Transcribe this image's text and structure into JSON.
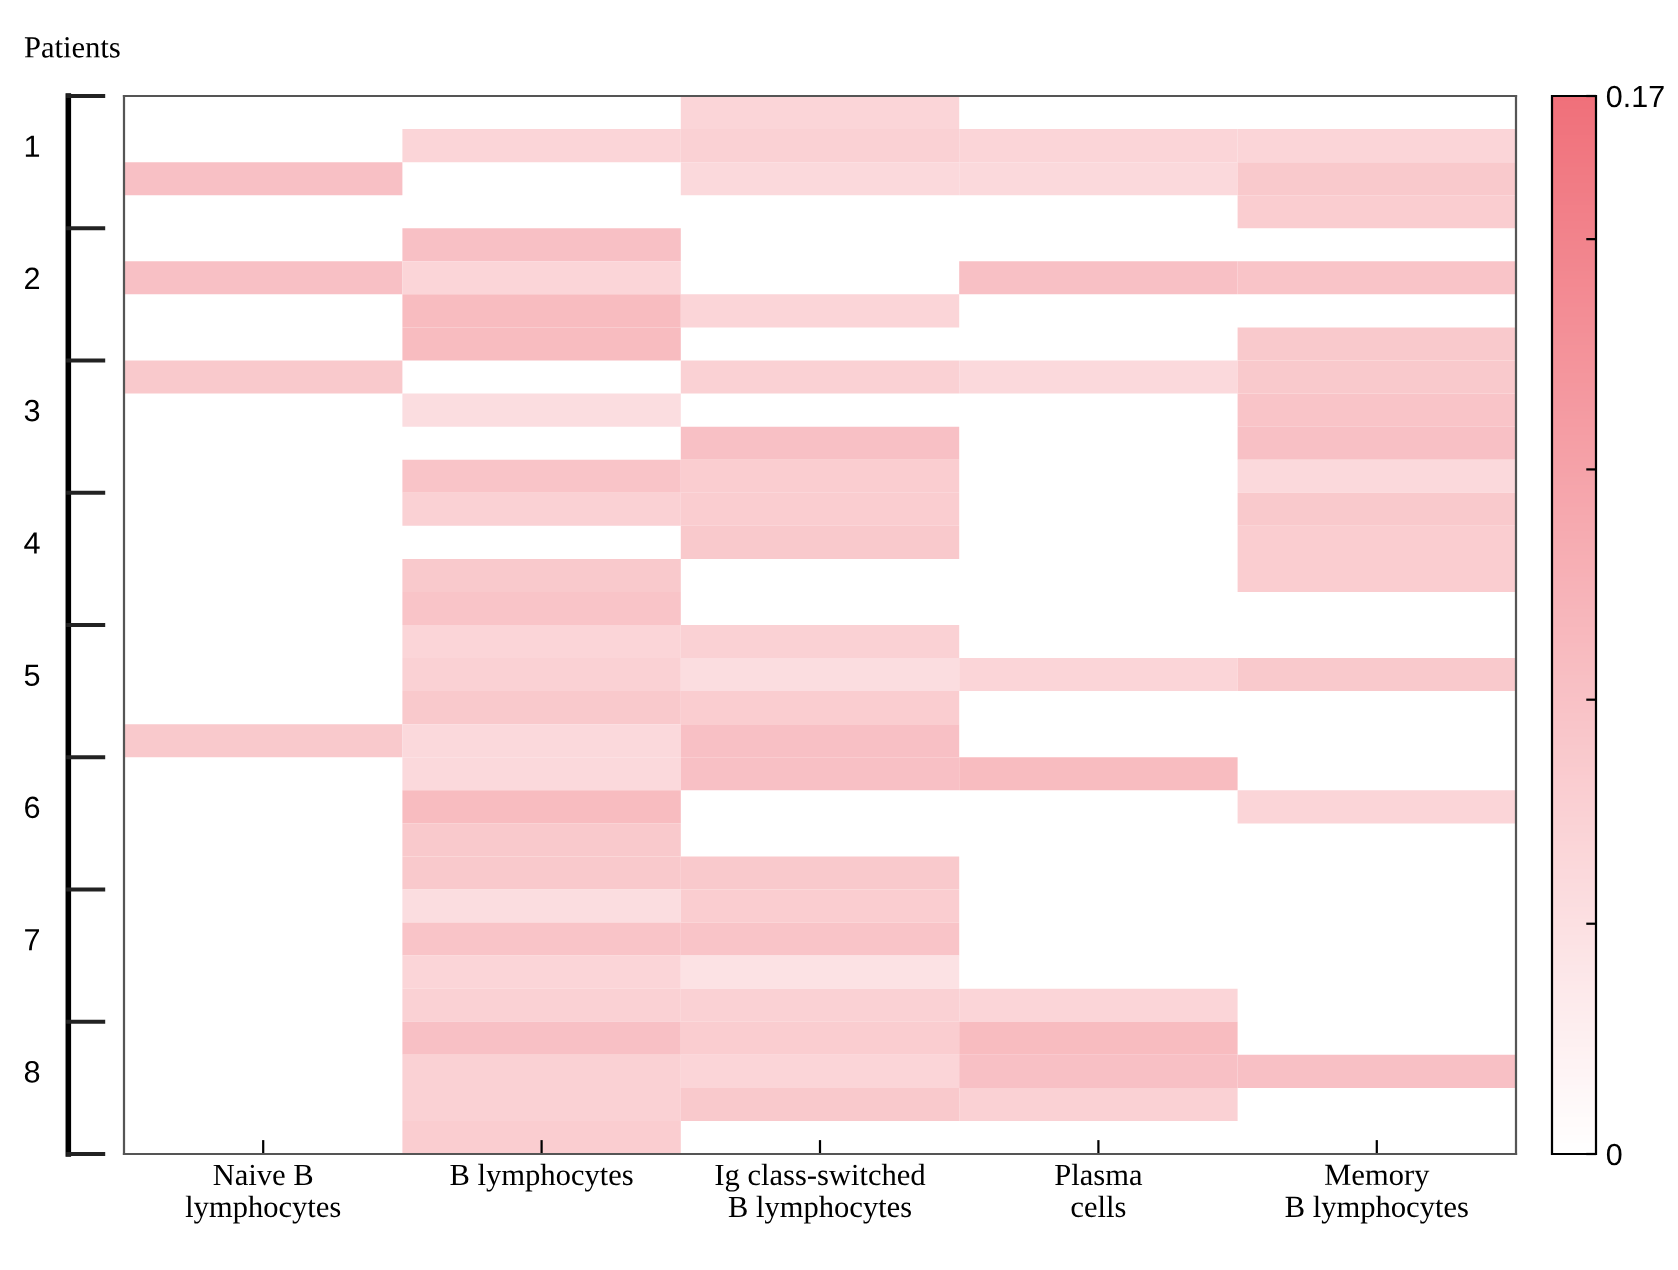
{
  "chart_data": {
    "type": "heatmap",
    "ylabel": "Patients",
    "categories": [
      "Naive B\nlymphocytes",
      "B lymphocytes",
      "Ig class-switched\nB lymphocytes",
      "Plasma\ncells",
      "Memory\nB lymphocytes"
    ],
    "y_categories": [
      null,
      "1",
      null,
      null,
      null,
      "2",
      null,
      null,
      null,
      "3",
      null,
      null,
      null,
      "4",
      null,
      null,
      null,
      "5",
      null,
      null,
      null,
      "6",
      null,
      null,
      null,
      "7",
      null,
      null,
      null,
      "8",
      null,
      null
    ],
    "cells": [
      [
        null,
        null,
        0.05,
        null,
        null
      ],
      [
        null,
        0.05,
        0.055,
        0.05,
        0.05
      ],
      [
        0.075,
        null,
        0.045,
        0.045,
        0.065
      ],
      [
        null,
        null,
        null,
        null,
        0.06
      ],
      [
        null,
        0.075,
        null,
        null,
        null
      ],
      [
        0.075,
        0.05,
        null,
        0.075,
        0.07
      ],
      [
        null,
        0.08,
        0.05,
        null,
        null
      ],
      [
        null,
        0.08,
        null,
        null,
        0.065
      ],
      [
        0.065,
        null,
        0.055,
        0.045,
        0.065
      ],
      [
        null,
        0.04,
        null,
        null,
        0.07
      ],
      [
        null,
        null,
        0.075,
        null,
        0.075
      ],
      [
        null,
        0.07,
        0.06,
        null,
        0.045
      ],
      [
        null,
        0.055,
        0.06,
        null,
        0.065
      ],
      [
        null,
        null,
        0.065,
        null,
        0.06
      ],
      [
        null,
        0.065,
        null,
        null,
        0.06
      ],
      [
        null,
        0.07,
        null,
        null,
        null
      ],
      [
        null,
        0.05,
        0.055,
        null,
        null
      ],
      [
        null,
        0.055,
        0.04,
        0.05,
        0.065
      ],
      [
        null,
        0.065,
        0.06,
        null,
        null
      ],
      [
        0.065,
        0.045,
        0.075,
        null,
        null
      ],
      [
        null,
        0.045,
        0.075,
        0.08,
        null
      ],
      [
        null,
        0.08,
        null,
        null,
        0.05
      ],
      [
        null,
        0.065,
        null,
        null,
        null
      ],
      [
        null,
        0.065,
        0.065,
        null,
        null
      ],
      [
        null,
        0.04,
        0.06,
        null,
        null
      ],
      [
        null,
        0.07,
        0.07,
        null,
        null
      ],
      [
        null,
        0.05,
        0.035,
        null,
        null
      ],
      [
        null,
        0.055,
        0.055,
        0.05,
        null
      ],
      [
        null,
        0.075,
        0.06,
        0.08,
        null
      ],
      [
        null,
        0.055,
        0.05,
        0.075,
        0.075
      ],
      [
        null,
        0.055,
        0.065,
        0.055,
        null
      ],
      [
        null,
        0.06,
        null,
        null,
        null
      ]
    ],
    "clim": [
      0,
      0.17
    ],
    "cticks": [
      {
        "value": 0,
        "label": "0"
      },
      {
        "value": 0.037,
        "label": null
      },
      {
        "value": 0.073,
        "label": null
      },
      {
        "value": 0.11,
        "label": null
      },
      {
        "value": 0.147,
        "label": null
      },
      {
        "value": 0.17,
        "label": "0.17"
      }
    ],
    "color": "#f0707a"
  }
}
